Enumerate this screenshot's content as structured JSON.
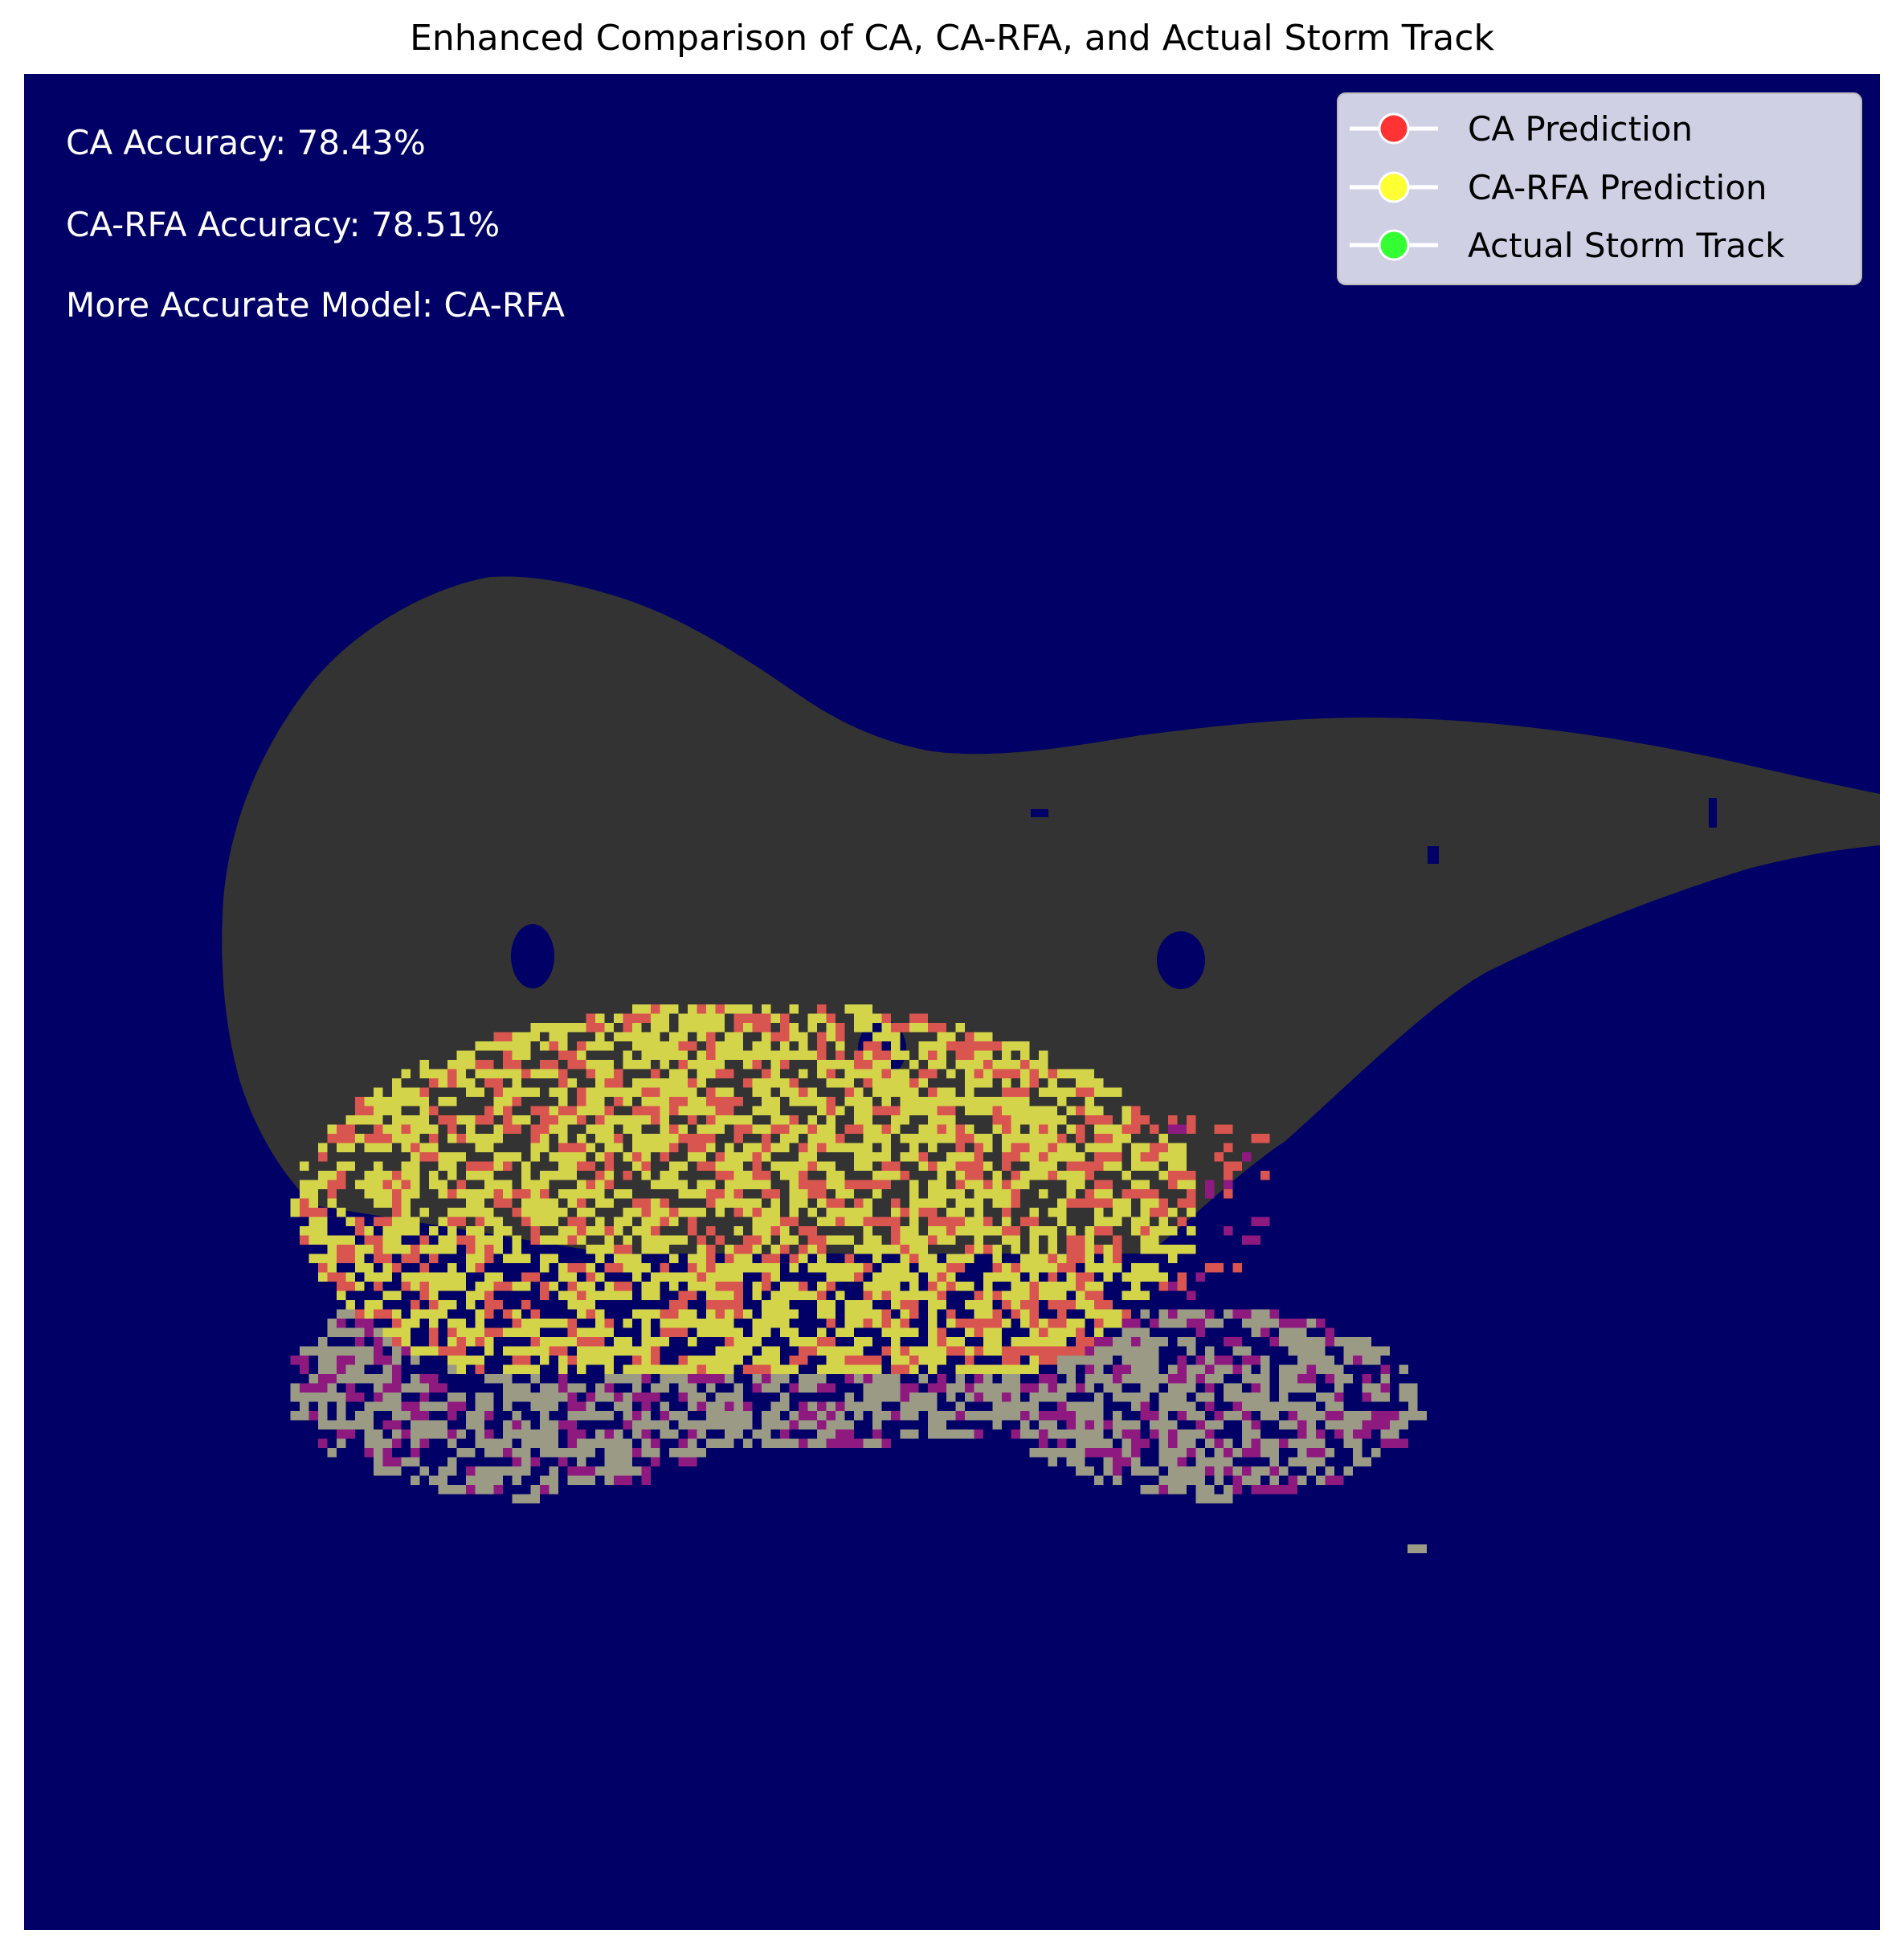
{
  "chart_data": {
    "type": "heatmap",
    "title": "Enhanced Comparison of CA, CA-RFA, and Actual Storm Track",
    "xlabel": "",
    "ylabel": "",
    "axes_visible": false,
    "grid": false,
    "legend_position": "top-right",
    "legend": [
      {
        "label": "CA Prediction",
        "color": "#ff3333"
      },
      {
        "label": "CA-RFA Prediction",
        "color": "#ffff33"
      },
      {
        "label": "Actual Storm Track",
        "color": "#33ff33"
      }
    ],
    "annotations": [
      "CA Accuracy: 78.43%",
      "CA-RFA Accuracy: 78.51%",
      "More Accurate Model: CA-RFA"
    ],
    "metrics": {
      "ca_accuracy_pct": 78.43,
      "ca_rfa_accuracy_pct": 78.51,
      "more_accurate_model": "CA-RFA"
    },
    "colors": {
      "background": "#000066",
      "storm_region": "#333333",
      "ca_rfa_cells": "#d4d44a",
      "ca_cells": "#d9554f",
      "actual_track_cells": "#9a9a85",
      "overlap_cells": "#8e1a80"
    }
  }
}
